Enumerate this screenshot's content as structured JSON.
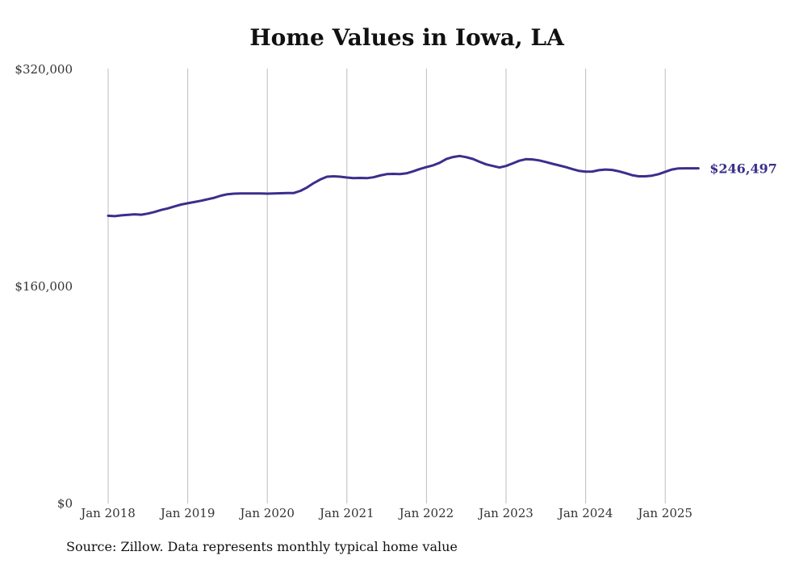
{
  "chart_data": {
    "type": "line",
    "title": "Home Values in Iowa, LA",
    "source": "Source: Zillow. Data represents monthly typical home value",
    "ylim": [
      0,
      320000
    ],
    "y_ticks": [
      0,
      160000,
      320000
    ],
    "y_tick_labels": [
      "$0",
      "$160,000",
      "$320,000"
    ],
    "x_ticks": [
      "2018-01",
      "2019-01",
      "2020-01",
      "2021-01",
      "2022-01",
      "2023-01",
      "2024-01",
      "2025-01"
    ],
    "x_tick_labels": [
      "Jan 2018",
      "Jan 2019",
      "Jan 2020",
      "Jan 2021",
      "Jan 2022",
      "Jan 2023",
      "Jan 2024",
      "Jan 2025"
    ],
    "grid": "vertical",
    "series": [
      {
        "color": "#3a2f8c",
        "end_label": "$246,497",
        "points": [
          [
            "2018-01",
            211500
          ],
          [
            "2018-02",
            211200
          ],
          [
            "2018-03",
            211800
          ],
          [
            "2018-04",
            212200
          ],
          [
            "2018-05",
            212600
          ],
          [
            "2018-06",
            212300
          ],
          [
            "2018-07",
            213100
          ],
          [
            "2018-08",
            214300
          ],
          [
            "2018-09",
            215800
          ],
          [
            "2018-10",
            216900
          ],
          [
            "2018-11",
            218400
          ],
          [
            "2018-12",
            219800
          ],
          [
            "2019-01",
            220700
          ],
          [
            "2019-02",
            221600
          ],
          [
            "2019-03",
            222600
          ],
          [
            "2019-04",
            223700
          ],
          [
            "2019-05",
            224800
          ],
          [
            "2019-06",
            226300
          ],
          [
            "2019-07",
            227400
          ],
          [
            "2019-08",
            227800
          ],
          [
            "2019-09",
            227900
          ],
          [
            "2019-10",
            227900
          ],
          [
            "2019-11",
            228000
          ],
          [
            "2019-12",
            227900
          ],
          [
            "2020-01",
            227800
          ],
          [
            "2020-02",
            227900
          ],
          [
            "2020-03",
            228100
          ],
          [
            "2020-04",
            228200
          ],
          [
            "2020-05",
            228300
          ],
          [
            "2020-06",
            229900
          ],
          [
            "2020-07",
            232400
          ],
          [
            "2020-08",
            235600
          ],
          [
            "2020-09",
            238300
          ],
          [
            "2020-10",
            240300
          ],
          [
            "2020-11",
            240600
          ],
          [
            "2020-12",
            240300
          ],
          [
            "2021-01",
            239700
          ],
          [
            "2021-02",
            239300
          ],
          [
            "2021-03",
            239400
          ],
          [
            "2021-04",
            239200
          ],
          [
            "2021-05",
            239900
          ],
          [
            "2021-06",
            241200
          ],
          [
            "2021-07",
            242200
          ],
          [
            "2021-08",
            242400
          ],
          [
            "2021-09",
            242200
          ],
          [
            "2021-10",
            242800
          ],
          [
            "2021-11",
            244300
          ],
          [
            "2021-12",
            246000
          ],
          [
            "2022-01",
            247400
          ],
          [
            "2022-02",
            248700
          ],
          [
            "2022-03",
            250600
          ],
          [
            "2022-04",
            253300
          ],
          [
            "2022-05",
            254800
          ],
          [
            "2022-06",
            255600
          ],
          [
            "2022-07",
            254700
          ],
          [
            "2022-08",
            253400
          ],
          [
            "2022-09",
            251300
          ],
          [
            "2022-10",
            249400
          ],
          [
            "2022-11",
            248200
          ],
          [
            "2022-12",
            247100
          ],
          [
            "2023-01",
            248200
          ],
          [
            "2023-02",
            250100
          ],
          [
            "2023-03",
            252100
          ],
          [
            "2023-04",
            253200
          ],
          [
            "2023-05",
            253000
          ],
          [
            "2023-06",
            252300
          ],
          [
            "2023-07",
            251100
          ],
          [
            "2023-08",
            249800
          ],
          [
            "2023-09",
            248600
          ],
          [
            "2023-10",
            247400
          ],
          [
            "2023-11",
            245900
          ],
          [
            "2023-12",
            244600
          ],
          [
            "2024-01",
            244000
          ],
          [
            "2024-02",
            244100
          ],
          [
            "2024-03",
            245100
          ],
          [
            "2024-04",
            245600
          ],
          [
            "2024-05",
            245300
          ],
          [
            "2024-06",
            244300
          ],
          [
            "2024-07",
            242900
          ],
          [
            "2024-08",
            241400
          ],
          [
            "2024-09",
            240600
          ],
          [
            "2024-10",
            240600
          ],
          [
            "2024-11",
            241100
          ],
          [
            "2024-12",
            242200
          ],
          [
            "2025-01",
            243900
          ],
          [
            "2025-02",
            245600
          ],
          [
            "2025-03",
            246400
          ],
          [
            "2025-04",
            246500
          ],
          [
            "2025-05",
            246500
          ],
          [
            "2025-06",
            246497
          ]
        ]
      }
    ]
  }
}
